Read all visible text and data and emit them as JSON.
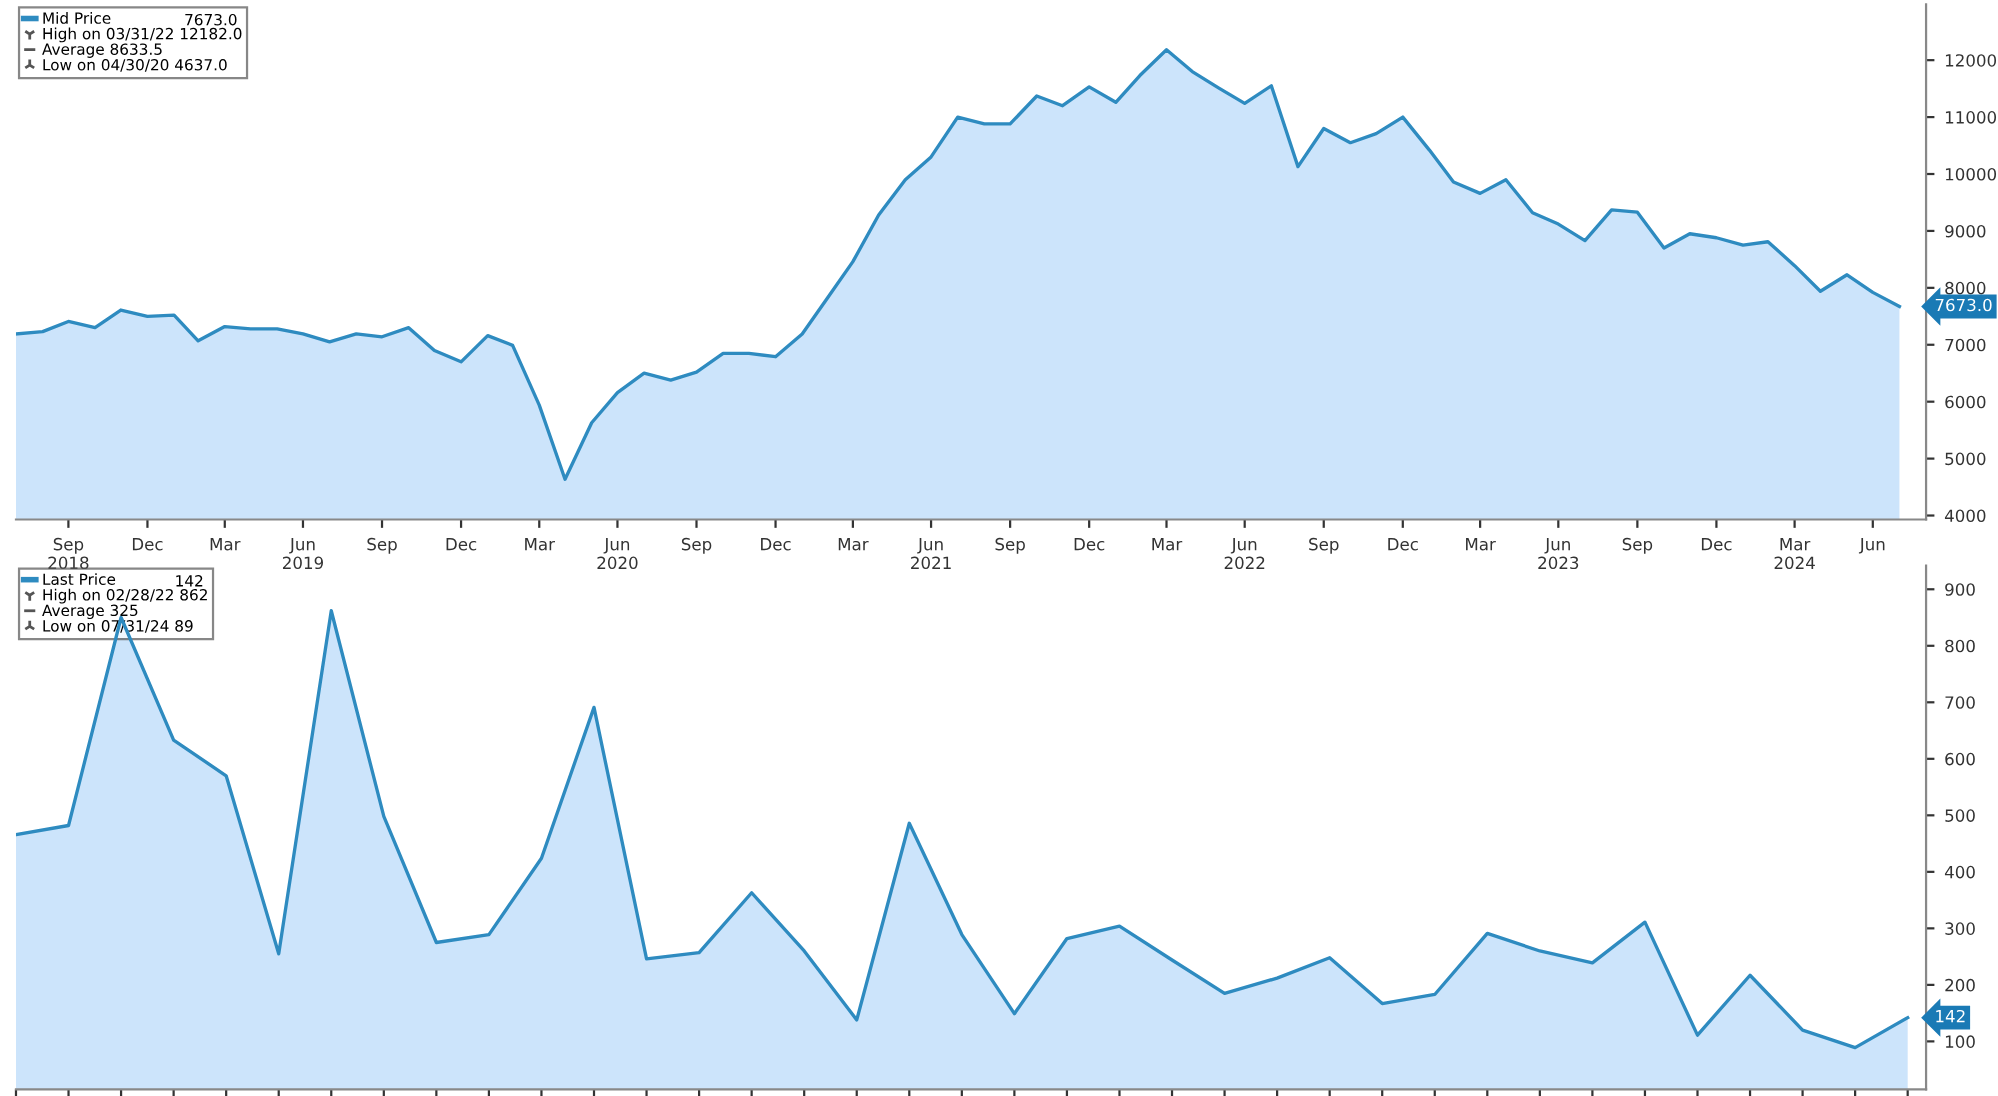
{
  "chart_data": [
    {
      "type": "area",
      "x": [
        "2018-07",
        "2018-08",
        "2018-09",
        "2018-10",
        "2018-11",
        "2018-12",
        "2019-01",
        "2019-02",
        "2019-03",
        "2019-04",
        "2019-05",
        "2019-06",
        "2019-07",
        "2019-08",
        "2019-09",
        "2019-10",
        "2019-11",
        "2019-12",
        "2020-01",
        "2020-02",
        "2020-03",
        "2020-04",
        "2020-05",
        "2020-06",
        "2020-07",
        "2020-08",
        "2020-09",
        "2020-10",
        "2020-11",
        "2020-12",
        "2021-01",
        "2021-02",
        "2021-03",
        "2021-04",
        "2021-05",
        "2021-06",
        "2021-07",
        "2021-08",
        "2021-09",
        "2021-10",
        "2021-11",
        "2021-12",
        "2022-01",
        "2022-02",
        "2022-03",
        "2022-04",
        "2022-05",
        "2022-06",
        "2022-07",
        "2022-08",
        "2022-09",
        "2022-10",
        "2022-11",
        "2022-12",
        "2023-01",
        "2023-02",
        "2023-03",
        "2023-04",
        "2023-05",
        "2023-06",
        "2023-07",
        "2023-08",
        "2023-09",
        "2023-10",
        "2023-11",
        "2023-12",
        "2024-01",
        "2024-02",
        "2024-03",
        "2024-04",
        "2024-05",
        "2024-06",
        "2024-07"
      ],
      "series": [
        {
          "name": "Mid Price",
          "color": "#2e8bc0",
          "values": [
            7190,
            7230,
            7410,
            7300,
            7610,
            7500,
            7520,
            7070,
            7320,
            7280,
            7280,
            7190,
            7050,
            7190,
            7140,
            7300,
            6900,
            6700,
            7160,
            6990,
            5940,
            4637,
            5630,
            6160,
            6500,
            6380,
            6520,
            6850,
            6850,
            6790,
            7190,
            7790,
            8460,
            9280,
            9900,
            10300,
            11000,
            10880,
            10880,
            11370,
            11200,
            11530,
            11260,
            11730,
            12182,
            11800,
            11510,
            11240,
            11550,
            10130,
            10800,
            10550,
            10710,
            11000,
            10420,
            9860,
            9660,
            9900,
            9320,
            9120,
            8830,
            9370,
            9330,
            8700,
            8950,
            8880,
            8750,
            8810,
            8390,
            7940,
            8230,
            7920,
            7673
          ]
        }
      ],
      "xlim": [
        "2018-07",
        "2024-08"
      ],
      "xticks": [
        {
          "value": "2018-09",
          "label": "Sep\n2018"
        },
        {
          "value": "2018-12",
          "label": "Dec"
        },
        {
          "value": "2019-03",
          "label": "Mar"
        },
        {
          "value": "2019-06",
          "label": "Jun\n2019"
        },
        {
          "value": "2019-09",
          "label": "Sep"
        },
        {
          "value": "2019-12",
          "label": "Dec"
        },
        {
          "value": "2020-03",
          "label": "Mar"
        },
        {
          "value": "2020-06",
          "label": "Jun\n2020"
        },
        {
          "value": "2020-09",
          "label": "Sep"
        },
        {
          "value": "2020-12",
          "label": "Dec"
        },
        {
          "value": "2021-03",
          "label": "Mar"
        },
        {
          "value": "2021-06",
          "label": "Jun\n2021"
        },
        {
          "value": "2021-09",
          "label": "Sep"
        },
        {
          "value": "2021-12",
          "label": "Dec"
        },
        {
          "value": "2022-03",
          "label": "Mar"
        },
        {
          "value": "2022-06",
          "label": "Jun\n2022"
        },
        {
          "value": "2022-09",
          "label": "Sep"
        },
        {
          "value": "2022-12",
          "label": "Dec"
        },
        {
          "value": "2023-03",
          "label": "Mar"
        },
        {
          "value": "2023-06",
          "label": "Jun\n2023"
        },
        {
          "value": "2023-09",
          "label": "Sep"
        },
        {
          "value": "2023-12",
          "label": "Dec"
        },
        {
          "value": "2024-03",
          "label": "Mar\n2024"
        },
        {
          "value": "2024-06",
          "label": "Jun"
        }
      ],
      "ylim": [
        3930,
        12980
      ],
      "yticks": [
        4000,
        5000,
        6000,
        7000,
        8000,
        9000,
        10000,
        11000,
        12000
      ],
      "annotations": [
        "7673.0",
        "High on 03/31/22 12182.0",
        "Average 8633.5",
        "Low on 04/30/20 4637.0",
        "7673.0"
      ],
      "legend": "top left",
      "grid": false
    },
    {
      "type": "area",
      "categories": [
        null,
        null,
        null,
        null,
        null,
        null,
        null,
        null,
        null,
        null,
        null,
        null,
        null,
        null,
        null,
        null,
        null,
        null,
        null,
        null,
        null,
        null,
        null,
        null,
        null,
        null,
        null,
        null,
        null,
        null,
        null,
        null,
        null,
        null,
        null,
        null,
        null
      ],
      "series": [
        {
          "name": "Last Price",
          "color": "#2e8bc0",
          "values": [
            466,
            482,
            850,
            633,
            570,
            255,
            862,
            498,
            275,
            289,
            424,
            691,
            246,
            257,
            363,
            260,
            138,
            486,
            289,
            149,
            282,
            304,
            244,
            185,
            212,
            248,
            167,
            183,
            291,
            260,
            239,
            311,
            111,
            217,
            120,
            89,
            142
          ]
        }
      ],
      "ylim": [
        15,
        942
      ],
      "yticks": [
        100,
        200,
        300,
        400,
        500,
        600,
        700,
        800,
        900
      ],
      "annotations": [
        "142",
        "High on 02/28/22 862",
        "Average 325",
        "Low on 07/31/24 89",
        "142"
      ],
      "legend": "top left",
      "grid": false,
      "tick_labels": "y"
    }
  ]
}
